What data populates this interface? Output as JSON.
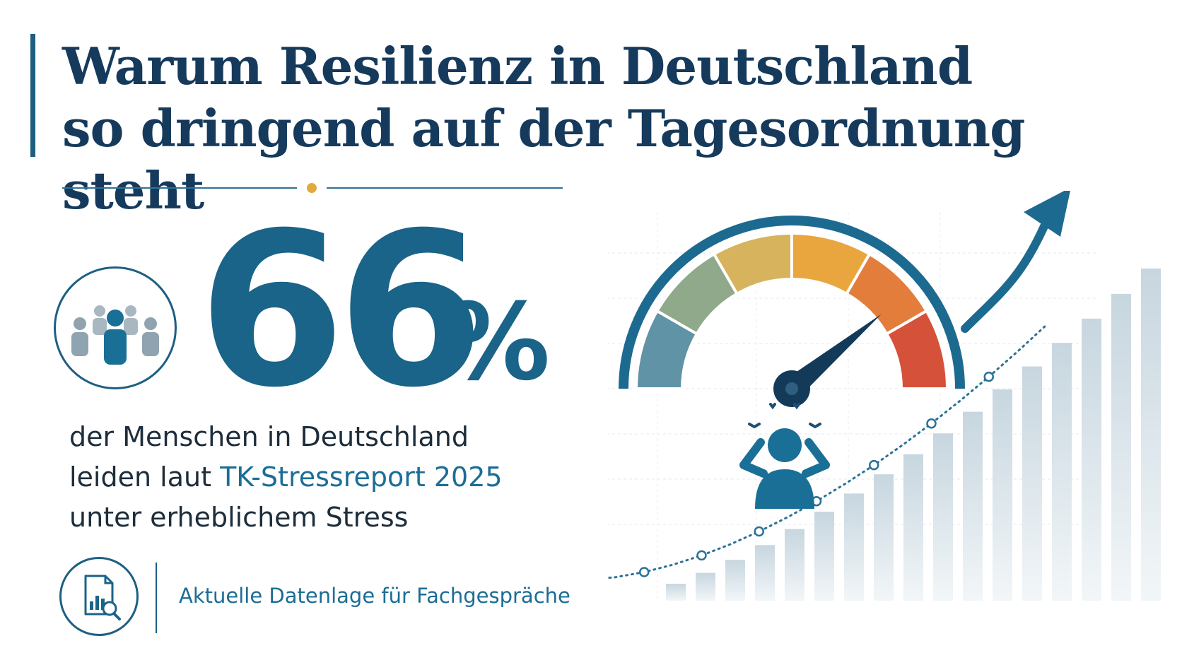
{
  "title": {
    "line1": "Warum Resilienz in Deutschland",
    "line2": "so dringend auf der Tagesordnung steht"
  },
  "stat": {
    "value": "66",
    "unit": "%"
  },
  "description": {
    "line1": "der Menschen in Deutschland",
    "line2_prefix": "leiden laut ",
    "line2_highlight": "TK-Stressreport 2025",
    "line3": "unter erheblichem Stress"
  },
  "footer": {
    "text": "Aktuelle Datenlage für Fachgespräche"
  },
  "icons": {
    "people": "people-group-icon",
    "report": "report-magnifier-icon",
    "stressed_person": "stressed-person-icon",
    "gauge": "stress-gauge-icon",
    "arrow": "trend-arrow-icon"
  },
  "colors": {
    "primary": "#1a6389",
    "title": "#153a5c",
    "accent_dot": "#e2a93f"
  },
  "chart_data": {
    "type": "bar",
    "bar_count": 17,
    "values": [
      1,
      2,
      3,
      4,
      5,
      6,
      7,
      8,
      9,
      10,
      11,
      12,
      13,
      14,
      15,
      16,
      17
    ],
    "gauge_level": 0.82
  }
}
